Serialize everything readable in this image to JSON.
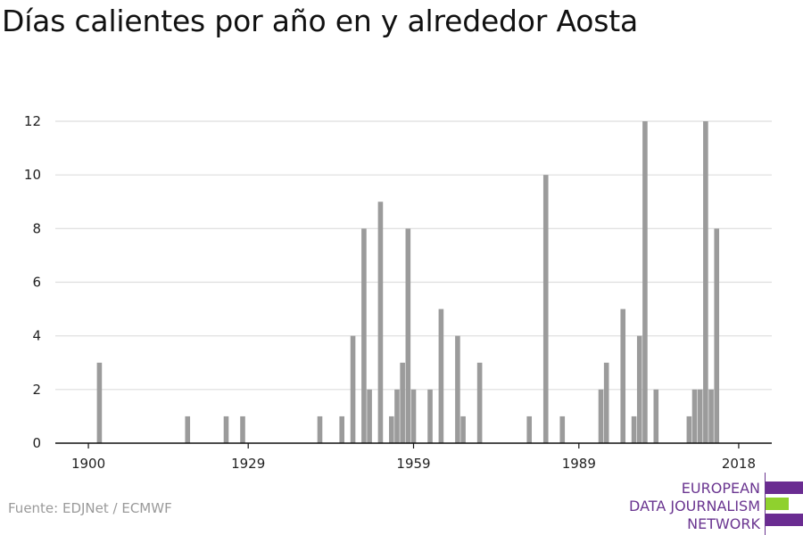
{
  "title": "Días calientes por año en y alrededor Aosta",
  "source": "Fuente: EDJNet / ECMWF",
  "logo": {
    "lines": [
      "EUROPEAN",
      "DATA JOURNALISM",
      "NETWORK"
    ],
    "colors": [
      "#6a2c91",
      "#8fd12e",
      "#6a2c91"
    ]
  },
  "colors": {
    "bar": "#9b9b9b",
    "grid": "#dddddd",
    "axis": "#111111"
  },
  "chart_data": {
    "type": "bar",
    "title": "Días calientes por año en y alrededor Aosta",
    "xlabel": "",
    "ylabel": "",
    "xlim": [
      1894,
      2024
    ],
    "ylim": [
      0,
      12
    ],
    "x_ticks": [
      1900,
      1929,
      1959,
      1989,
      2018
    ],
    "y_ticks": [
      0,
      2,
      4,
      6,
      8,
      10,
      12
    ],
    "grid": true,
    "legend": "none",
    "x": [
      1902,
      1918,
      1925,
      1928,
      1942,
      1946,
      1948,
      1950,
      1951,
      1953,
      1955,
      1956,
      1957,
      1958,
      1959,
      1962,
      1964,
      1967,
      1968,
      1971,
      1980,
      1983,
      1986,
      1993,
      1994,
      1997,
      1999,
      2000,
      2001,
      2003,
      2009,
      2010,
      2011,
      2012,
      2013,
      2014,
      2015
    ],
    "values": [
      3,
      1,
      1,
      1,
      1,
      1,
      4,
      8,
      2,
      9,
      1,
      2,
      3,
      8,
      2,
      2,
      5,
      4,
      1,
      3,
      1,
      10,
      1,
      2,
      3,
      5,
      1,
      4,
      12,
      2,
      1,
      2,
      2,
      12,
      2,
      8,
      0
    ]
  }
}
